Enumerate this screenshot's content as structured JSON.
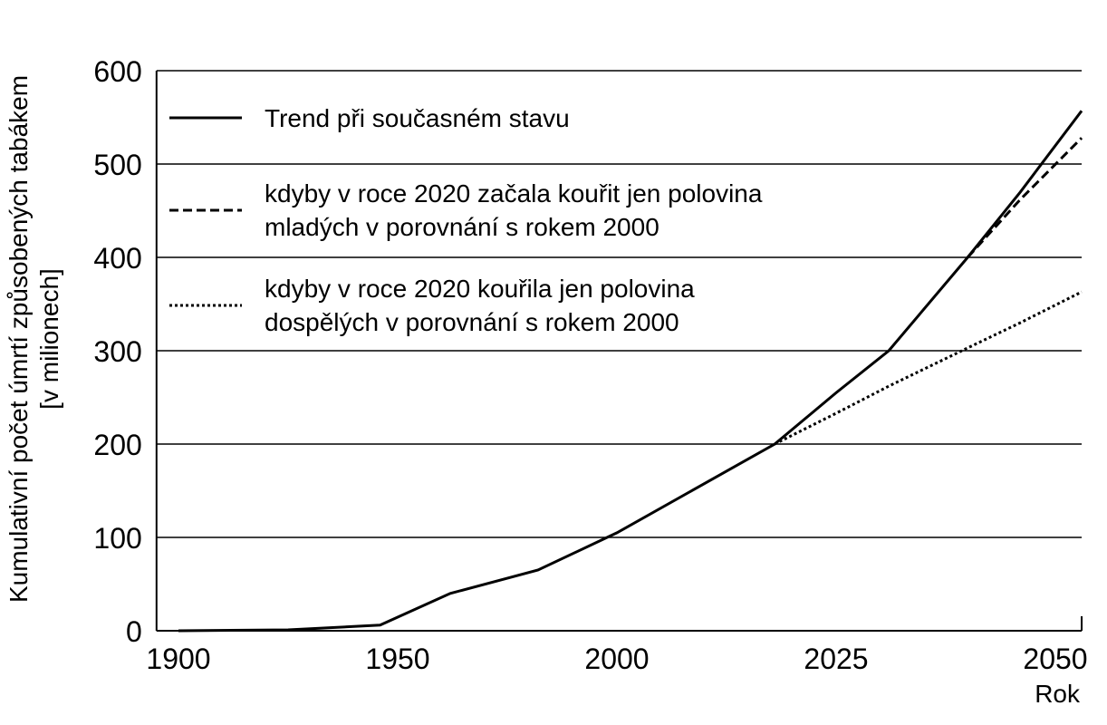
{
  "chart_data": {
    "type": "line",
    "ylabel": "Kumulativní počet úmrtí způsobených tabákem\n[v milionech]",
    "xlabel": "Rok",
    "x": [
      1900,
      1925,
      1946,
      1962,
      1982,
      2000,
      2018,
      2025,
      2031,
      2040,
      2046,
      2053
    ],
    "series": [
      {
        "name": "Trend při současném stavu",
        "color": "#000000",
        "dash": "solid",
        "values": [
          0,
          1,
          6,
          40,
          65,
          105,
          200,
          255,
          300,
          400,
          470,
          557
        ]
      },
      {
        "name": "kdyby v roce 2020 začala kouřit jen polovina\nmladých v porovnání s rokem 2000",
        "color": "#000000",
        "dash": "dashed",
        "values": [
          null,
          null,
          null,
          null,
          null,
          null,
          null,
          null,
          null,
          400,
          462,
          528
        ]
      },
      {
        "name": "kdyby v roce 2020 kouřila jen polovina\ndospělých v porovnání s rokem 2000",
        "color": "#000000",
        "dash": "dotted",
        "values": [
          null,
          null,
          null,
          null,
          null,
          null,
          200,
          233,
          262,
          303,
          330,
          363
        ]
      }
    ],
    "xlim": [
      1895,
      2053
    ],
    "xticks": [
      1900,
      1950,
      2000,
      2025,
      2050
    ],
    "ylim": [
      0,
      600
    ],
    "yticks": [
      0,
      100,
      200,
      300,
      400,
      500,
      600
    ],
    "grid": true,
    "legend": "upper left"
  }
}
